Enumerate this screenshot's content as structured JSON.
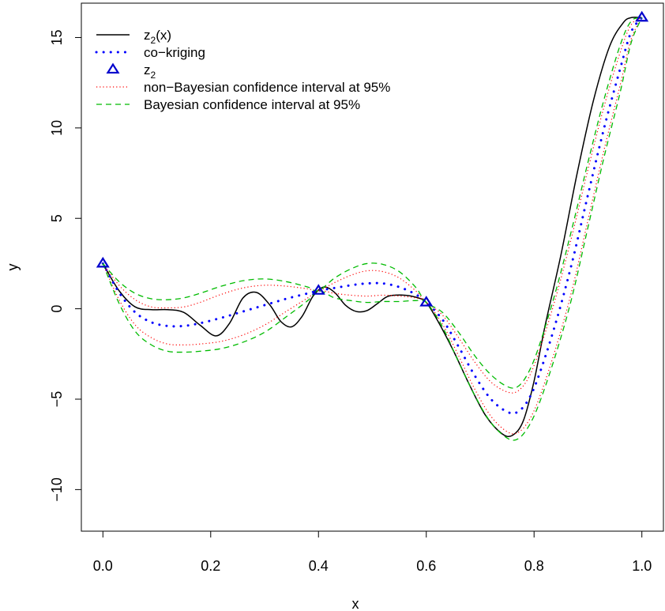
{
  "chart_data": {
    "type": "line",
    "xlabel": "x",
    "ylabel": "y",
    "xlim": [
      -0.04,
      1.04
    ],
    "ylim": [
      -12.3,
      16.9
    ],
    "xticks": [
      0.0,
      0.2,
      0.4,
      0.6,
      0.8,
      1.0
    ],
    "xtick_labels": [
      "0.0",
      "0.2",
      "0.4",
      "0.6",
      "0.8",
      "1.0"
    ],
    "yticks": [
      -10,
      -5,
      0,
      5,
      10,
      15
    ],
    "ytick_labels": [
      "−10",
      "−5",
      "0",
      "5",
      "10",
      "15"
    ],
    "grid": false,
    "legend_position": "top-left",
    "legend": [
      {
        "label": "z2(x)",
        "base": "z",
        "sub": "2",
        "suffix": "(x)",
        "style": "solid",
        "color": "#000000"
      },
      {
        "label": "co−kriging",
        "base": "co−kriging",
        "sub": "",
        "suffix": "",
        "style": "dotted-heavy",
        "color": "#0000ff"
      },
      {
        "label": "z2",
        "base": "z",
        "sub": "2",
        "suffix": "",
        "style": "triangle",
        "color": "#0000cd"
      },
      {
        "label": "non−Bayesian confidence interval at 95%",
        "base": "non−Bayesian confidence interval at 95%",
        "sub": "",
        "suffix": "",
        "style": "dotted",
        "color": "#ff0000"
      },
      {
        "label": "Bayesian confidence interval at 95%",
        "base": "Bayesian confidence interval at 95%",
        "sub": "",
        "suffix": "",
        "style": "dashed",
        "color": "#00bb00"
      }
    ],
    "series": [
      {
        "name": "z2(x)",
        "style": "solid",
        "color": "#000000",
        "x": [
          0.0,
          0.03,
          0.06,
          0.09,
          0.12,
          0.15,
          0.18,
          0.21,
          0.235,
          0.26,
          0.285,
          0.31,
          0.33,
          0.35,
          0.37,
          0.39,
          0.41,
          0.43,
          0.45,
          0.47,
          0.49,
          0.51,
          0.53,
          0.56,
          0.585,
          0.6,
          0.62,
          0.65,
          0.68,
          0.71,
          0.74,
          0.76,
          0.78,
          0.8,
          0.82,
          0.85,
          0.88,
          0.91,
          0.94,
          0.965,
          0.98,
          1.0
        ],
        "y": [
          2.5,
          1.0,
          0.1,
          -0.05,
          -0.05,
          -0.2,
          -0.9,
          -1.5,
          -0.8,
          0.6,
          0.9,
          0.2,
          -0.7,
          -1.0,
          -0.4,
          0.7,
          1.2,
          0.9,
          0.2,
          -0.15,
          -0.1,
          0.3,
          0.7,
          0.75,
          0.6,
          0.35,
          -0.6,
          -2.3,
          -4.2,
          -5.9,
          -6.9,
          -7.0,
          -6.2,
          -4.0,
          -1.0,
          3.0,
          7.5,
          11.5,
          14.5,
          15.8,
          16.1,
          16.1
        ]
      },
      {
        "name": "co−kriging",
        "style": "dotted-heavy",
        "color": "#0000ff",
        "x": [
          0.0,
          0.03,
          0.06,
          0.09,
          0.12,
          0.15,
          0.18,
          0.22,
          0.26,
          0.3,
          0.34,
          0.38,
          0.4,
          0.43,
          0.46,
          0.49,
          0.52,
          0.55,
          0.58,
          0.6,
          0.63,
          0.66,
          0.69,
          0.72,
          0.75,
          0.77,
          0.79,
          0.81,
          0.84,
          0.87,
          0.9,
          0.93,
          0.96,
          0.98,
          1.0
        ],
        "y": [
          2.5,
          0.9,
          -0.2,
          -0.75,
          -0.95,
          -0.95,
          -0.8,
          -0.5,
          -0.15,
          0.2,
          0.55,
          0.85,
          1.0,
          1.15,
          1.3,
          1.4,
          1.4,
          1.2,
          0.8,
          0.35,
          -0.6,
          -2.1,
          -3.7,
          -5.0,
          -5.7,
          -5.7,
          -5.0,
          -3.6,
          -0.8,
          2.5,
          6.3,
          10.0,
          13.3,
          15.3,
          16.1
        ]
      },
      {
        "name": "non−Bayesian confidence interval at 95% (upper)",
        "style": "dotted",
        "color": "#ff0000",
        "x": [
          0.0,
          0.03,
          0.06,
          0.09,
          0.12,
          0.15,
          0.18,
          0.22,
          0.26,
          0.3,
          0.34,
          0.38,
          0.4,
          0.43,
          0.46,
          0.49,
          0.52,
          0.55,
          0.58,
          0.6,
          0.63,
          0.66,
          0.69,
          0.72,
          0.75,
          0.77,
          0.79,
          0.81,
          0.84,
          0.87,
          0.9,
          0.93,
          0.96,
          0.98,
          1.0
        ],
        "y": [
          2.5,
          1.3,
          0.5,
          0.1,
          0.05,
          0.1,
          0.35,
          0.8,
          1.15,
          1.3,
          1.25,
          1.1,
          1.0,
          1.45,
          1.85,
          2.1,
          2.05,
          1.7,
          1.0,
          0.35,
          -0.35,
          -1.6,
          -2.95,
          -4.05,
          -4.6,
          -4.55,
          -3.8,
          -2.3,
          0.6,
          4.0,
          7.7,
          11.2,
          14.2,
          15.7,
          16.1
        ]
      },
      {
        "name": "non−Bayesian confidence interval at 95% (lower)",
        "style": "dotted",
        "color": "#ff0000",
        "x": [
          0.0,
          0.03,
          0.06,
          0.09,
          0.12,
          0.15,
          0.18,
          0.22,
          0.26,
          0.3,
          0.34,
          0.38,
          0.4,
          0.43,
          0.46,
          0.49,
          0.52,
          0.55,
          0.58,
          0.6,
          0.63,
          0.66,
          0.69,
          0.72,
          0.75,
          0.77,
          0.79,
          0.81,
          0.84,
          0.87,
          0.9,
          0.93,
          0.96,
          0.98,
          1.0
        ],
        "y": [
          2.5,
          0.5,
          -0.9,
          -1.6,
          -1.95,
          -2.0,
          -1.95,
          -1.8,
          -1.45,
          -0.9,
          -0.15,
          0.6,
          1.0,
          0.85,
          0.75,
          0.7,
          0.75,
          0.7,
          0.6,
          0.35,
          -0.85,
          -2.6,
          -4.45,
          -5.95,
          -6.8,
          -6.85,
          -6.2,
          -4.9,
          -2.2,
          1.0,
          4.9,
          8.8,
          12.4,
          14.9,
          16.1
        ]
      },
      {
        "name": "Bayesian confidence interval at 95% (upper)",
        "style": "dashed",
        "color": "#00bb00",
        "x": [
          0.0,
          0.03,
          0.06,
          0.09,
          0.12,
          0.15,
          0.18,
          0.22,
          0.26,
          0.3,
          0.34,
          0.38,
          0.4,
          0.43,
          0.46,
          0.49,
          0.52,
          0.55,
          0.58,
          0.6,
          0.63,
          0.66,
          0.69,
          0.72,
          0.75,
          0.77,
          0.79,
          0.81,
          0.84,
          0.87,
          0.9,
          0.93,
          0.96,
          0.98,
          1.0
        ],
        "y": [
          2.5,
          1.5,
          0.85,
          0.55,
          0.5,
          0.6,
          0.85,
          1.25,
          1.55,
          1.65,
          1.5,
          1.2,
          1.0,
          1.7,
          2.2,
          2.5,
          2.45,
          2.05,
          1.2,
          0.35,
          -0.2,
          -1.3,
          -2.6,
          -3.65,
          -4.3,
          -4.3,
          -3.5,
          -2.0,
          0.95,
          4.4,
          8.1,
          11.6,
          14.6,
          15.9,
          16.1
        ]
      },
      {
        "name": "Bayesian confidence interval at 95% (lower)",
        "style": "dashed",
        "color": "#00bb00",
        "x": [
          0.0,
          0.03,
          0.06,
          0.09,
          0.12,
          0.15,
          0.18,
          0.22,
          0.26,
          0.3,
          0.34,
          0.38,
          0.4,
          0.43,
          0.46,
          0.49,
          0.52,
          0.55,
          0.58,
          0.6,
          0.63,
          0.66,
          0.69,
          0.72,
          0.75,
          0.77,
          0.79,
          0.81,
          0.84,
          0.87,
          0.9,
          0.93,
          0.96,
          0.98,
          1.0
        ],
        "y": [
          2.5,
          0.3,
          -1.25,
          -2.0,
          -2.35,
          -2.4,
          -2.35,
          -2.2,
          -1.85,
          -1.3,
          -0.45,
          0.45,
          1.0,
          0.6,
          0.45,
          0.35,
          0.4,
          0.4,
          0.45,
          0.35,
          -1.0,
          -2.95,
          -4.8,
          -6.3,
          -7.15,
          -7.2,
          -6.5,
          -5.2,
          -2.55,
          0.6,
          4.5,
          8.4,
          12.0,
          14.7,
          16.1
        ]
      },
      {
        "name": "z2",
        "style": "triangle",
        "color": "#0000cd",
        "x": [
          0.0,
          0.4,
          0.6,
          1.0
        ],
        "y": [
          2.5,
          1.0,
          0.35,
          16.1
        ]
      }
    ]
  }
}
